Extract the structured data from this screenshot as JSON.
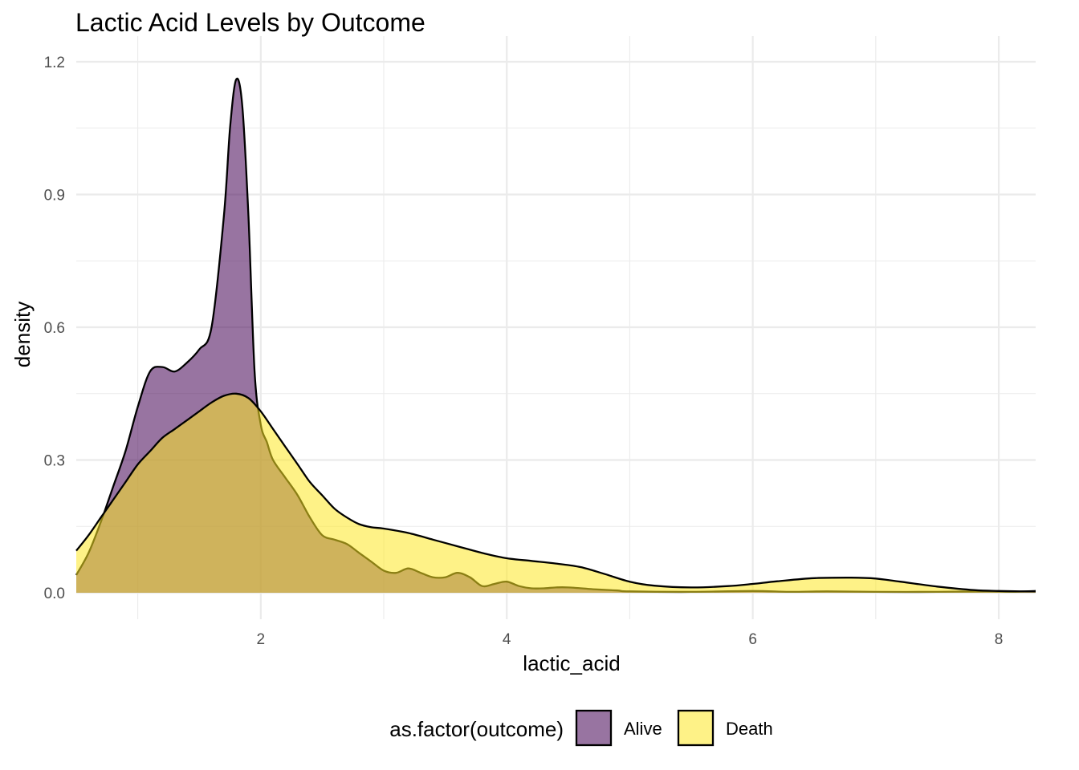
{
  "chart_data": {
    "type": "area",
    "subtype": "density",
    "title": "Lactic Acid Levels by Outcome",
    "xlabel": "lactic_acid",
    "ylabel": "density",
    "xlim": [
      0.5,
      8.3
    ],
    "ylim": [
      0,
      1.2
    ],
    "x_ticks": [
      2,
      4,
      6,
      8
    ],
    "x_tick_labels": [
      "2",
      "4",
      "6",
      "8"
    ],
    "x_minor_ticks": [
      1,
      3,
      5,
      7
    ],
    "y_ticks": [
      0,
      0.3,
      0.6,
      0.9,
      1.2
    ],
    "y_tick_labels": [
      "0.0",
      "0.3",
      "0.6",
      "0.9",
      "1.2"
    ],
    "y_minor_ticks": [
      0.15,
      0.45,
      0.75,
      1.05
    ],
    "grid": true,
    "legend": {
      "title": "as.factor(outcome)",
      "position": "bottom",
      "entries": [
        "Alive",
        "Death"
      ]
    },
    "series": [
      {
        "name": "Alive",
        "color": "#440154",
        "fill_opacity": 0.55,
        "x": [
          0.5,
          0.6,
          0.7,
          0.8,
          0.9,
          1.0,
          1.1,
          1.2,
          1.3,
          1.4,
          1.5,
          1.6,
          1.7,
          1.75,
          1.8,
          1.85,
          1.9,
          1.95,
          2.0,
          2.05,
          2.1,
          2.2,
          2.3,
          2.4,
          2.5,
          2.6,
          2.7,
          2.8,
          2.9,
          3.0,
          3.1,
          3.2,
          3.3,
          3.4,
          3.5,
          3.6,
          3.7,
          3.8,
          3.9,
          4.0,
          4.1,
          4.2,
          4.3,
          4.4,
          4.5,
          4.7,
          4.9,
          5.0,
          5.5,
          6.0,
          6.3,
          6.6,
          7.0,
          7.5,
          7.9,
          8.1,
          8.3
        ],
        "y": [
          0.04,
          0.09,
          0.16,
          0.24,
          0.32,
          0.42,
          0.5,
          0.51,
          0.5,
          0.52,
          0.55,
          0.6,
          0.85,
          1.05,
          1.16,
          1.1,
          0.85,
          0.5,
          0.38,
          0.34,
          0.3,
          0.26,
          0.22,
          0.17,
          0.13,
          0.12,
          0.11,
          0.09,
          0.07,
          0.05,
          0.045,
          0.055,
          0.045,
          0.035,
          0.035,
          0.045,
          0.035,
          0.015,
          0.02,
          0.025,
          0.015,
          0.01,
          0.01,
          0.012,
          0.012,
          0.008,
          0.005,
          0.003,
          0.002,
          0.004,
          0.002,
          0.003,
          0.002,
          0.002,
          0.003,
          0.002,
          0.004
        ]
      },
      {
        "name": "Death",
        "color": "#FDE725",
        "fill_opacity": 0.55,
        "x": [
          0.5,
          0.6,
          0.7,
          0.8,
          0.9,
          1.0,
          1.1,
          1.2,
          1.3,
          1.4,
          1.5,
          1.6,
          1.7,
          1.8,
          1.9,
          2.0,
          2.1,
          2.2,
          2.3,
          2.4,
          2.5,
          2.6,
          2.7,
          2.8,
          2.9,
          3.0,
          3.2,
          3.4,
          3.6,
          3.8,
          4.0,
          4.2,
          4.4,
          4.6,
          4.8,
          5.0,
          5.2,
          5.5,
          5.8,
          6.0,
          6.2,
          6.5,
          6.8,
          7.0,
          7.2,
          7.5,
          7.8,
          8.0,
          8.3
        ],
        "y": [
          0.095,
          0.13,
          0.17,
          0.21,
          0.25,
          0.29,
          0.32,
          0.35,
          0.37,
          0.39,
          0.41,
          0.43,
          0.445,
          0.45,
          0.44,
          0.41,
          0.37,
          0.33,
          0.29,
          0.25,
          0.22,
          0.19,
          0.17,
          0.155,
          0.148,
          0.145,
          0.135,
          0.12,
          0.105,
          0.09,
          0.078,
          0.072,
          0.066,
          0.058,
          0.042,
          0.025,
          0.016,
          0.012,
          0.015,
          0.02,
          0.026,
          0.033,
          0.034,
          0.032,
          0.025,
          0.014,
          0.006,
          0.004,
          0.003
        ]
      }
    ]
  }
}
